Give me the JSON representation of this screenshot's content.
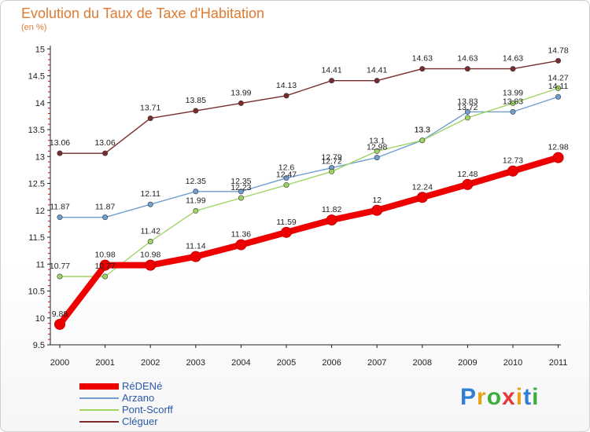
{
  "header": {
    "title": "Evolution du Taux de Taxe d'Habitation",
    "subtitle": "(en %)"
  },
  "logo": {
    "text": "Proxiti",
    "colors": [
      "#2f7fd6",
      "#e8a21a",
      "#3cae3c",
      "#e23a3a",
      "#e8a21a",
      "#2f7fd6",
      "#3cae3c"
    ]
  },
  "chart_data": {
    "type": "line",
    "title": "Evolution du Taux de Taxe d'Habitation",
    "ylabel": "(en %)",
    "xlabel": "",
    "categories": [
      "2000",
      "2001",
      "2002",
      "2003",
      "2004",
      "2005",
      "2006",
      "2007",
      "2008",
      "2009",
      "2010",
      "2011"
    ],
    "ylim": [
      9.5,
      15
    ],
    "yticks": [
      "9.5",
      "10",
      "10.5",
      "11",
      "11.5",
      "12",
      "12.5",
      "13",
      "13.5",
      "14",
      "14.5",
      "15"
    ],
    "grid": false,
    "legend_position": "bottom-left",
    "series": [
      {
        "name": "RéDENé",
        "color": "#ee0000",
        "values": [
          9.88,
          10.98,
          10.98,
          11.14,
          11.36,
          11.59,
          11.82,
          12,
          12.24,
          12.48,
          12.73,
          12.98
        ],
        "labels": [
          "9.88",
          "10.98",
          "10.98",
          "11.14",
          "11.36",
          "11.59",
          "11.82",
          "12",
          "12.24",
          "12.48",
          "12.73",
          "12.98"
        ]
      },
      {
        "name": "Arzano",
        "color": "#6f9fd0",
        "values": [
          11.87,
          11.87,
          12.11,
          12.35,
          12.35,
          12.6,
          12.79,
          12.98,
          13.3,
          13.83,
          13.83,
          14.11
        ],
        "labels": [
          "11.87",
          "11.87",
          "12.11",
          "12.35",
          "12.35",
          "12.6",
          "12.79",
          "12.98",
          "13.3",
          "13.83",
          "13.83",
          "14.11"
        ]
      },
      {
        "name": "Pont-Scorff",
        "color": "#9fd464",
        "values": [
          10.77,
          10.77,
          11.42,
          11.99,
          12.23,
          12.47,
          12.72,
          13.1,
          13.3,
          13.72,
          13.99,
          14.27
        ],
        "labels": [
          "10.77",
          "10.77",
          "11.42",
          "11.99",
          "12.23",
          "12.47",
          "12.72",
          "13.1",
          "13.3",
          "13.72",
          "13.99",
          "14.27"
        ]
      },
      {
        "name": "Cléguer",
        "color": "#7a2c2c",
        "values": [
          13.06,
          13.06,
          13.71,
          13.85,
          13.99,
          14.13,
          14.41,
          14.41,
          14.63,
          14.63,
          14.63,
          14.78
        ],
        "labels": [
          "13.06",
          "13.06",
          "13.71",
          "13.85",
          "13.99",
          "14.13",
          "14.41",
          "14.41",
          "14.63",
          "14.63",
          "14.63",
          "14.78"
        ]
      }
    ]
  }
}
